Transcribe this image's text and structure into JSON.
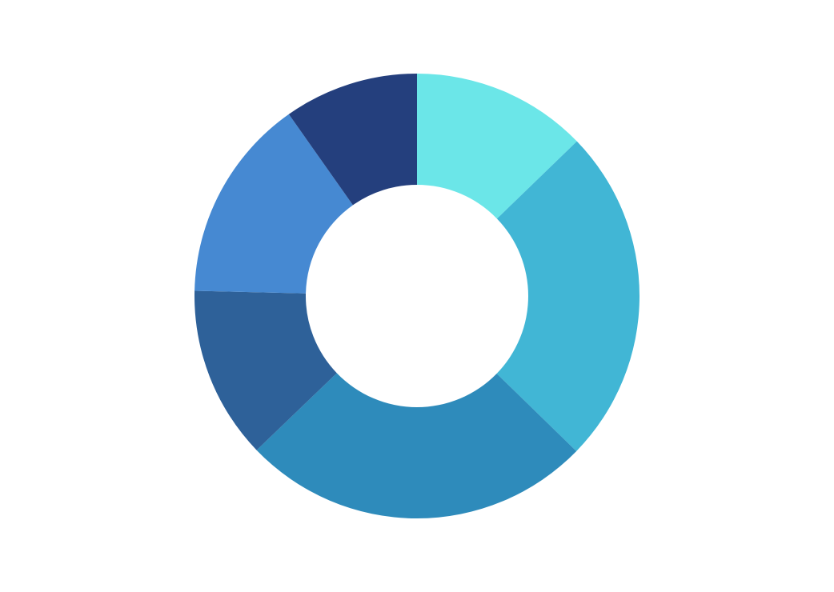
{
  "chart_data": {
    "type": "pie",
    "donut": true,
    "title": "",
    "legend": "none",
    "slices": [
      {
        "value": 12.8,
        "color": "#6be6e8"
      },
      {
        "value": 24.6,
        "color": "#41b6d5"
      },
      {
        "value": 25.6,
        "color": "#2e8bbb"
      },
      {
        "value": 12.6,
        "color": "#2e6199"
      },
      {
        "value": 14.9,
        "color": "#4689d2"
      },
      {
        "value": 9.8,
        "color": "#243f7d"
      }
    ]
  }
}
